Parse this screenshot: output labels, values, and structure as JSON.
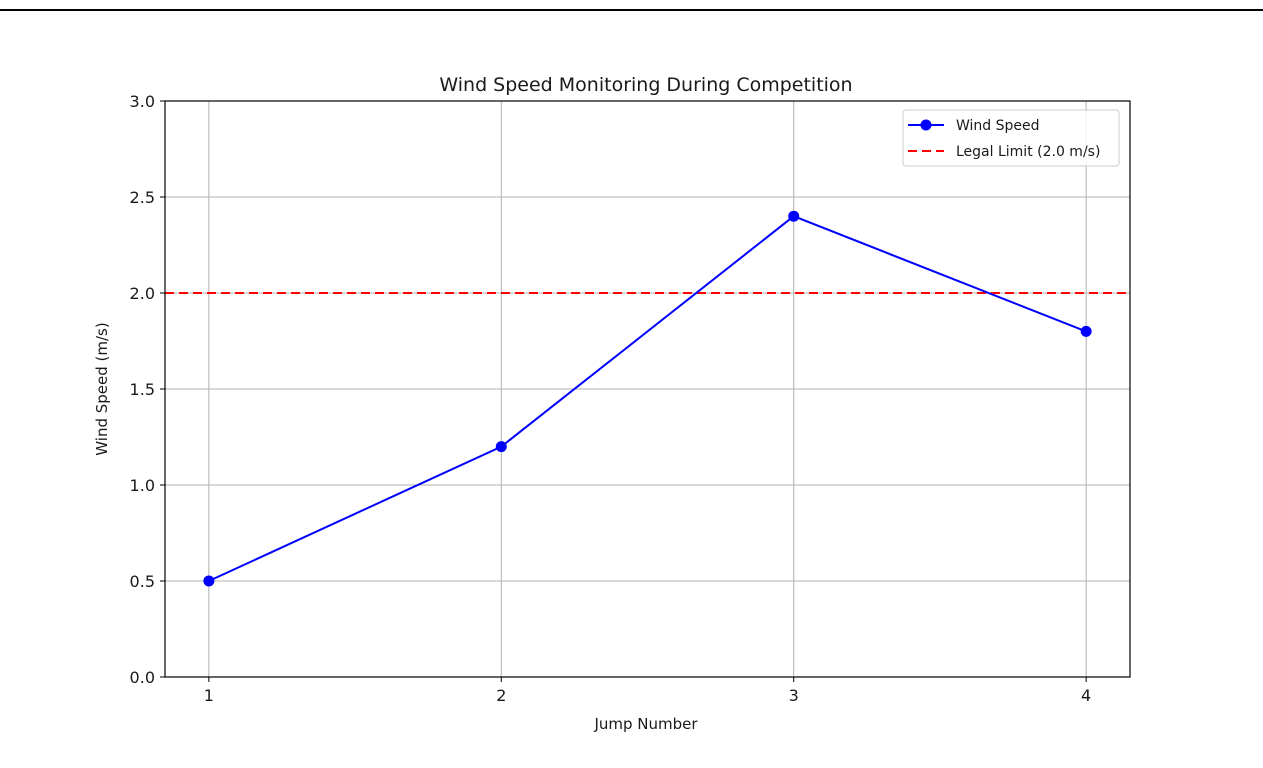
{
  "colors": {
    "series": "#0000ff",
    "limit": "#ff0000",
    "grid": "#b0b0b0",
    "axis": "#000000"
  },
  "chart_data": {
    "type": "line",
    "title": "Wind Speed Monitoring During Competition",
    "xlabel": "Jump Number",
    "ylabel": "Wind Speed (m/s)",
    "x": [
      1,
      2,
      3,
      4
    ],
    "xticks": [
      "1",
      "2",
      "3",
      "4"
    ],
    "yticks": [
      "0.0",
      "0.5",
      "1.0",
      "1.5",
      "2.0",
      "2.5",
      "3.0"
    ],
    "xlim": [
      0.85,
      4.15
    ],
    "ylim": [
      0,
      3.0
    ],
    "grid": true,
    "legend_position": "top-right",
    "series": [
      {
        "name": "Wind Speed",
        "values": [
          0.5,
          1.2,
          2.4,
          1.8
        ],
        "color": "#0000ff",
        "style": "solid",
        "marker": "circle"
      }
    ],
    "reference_lines": [
      {
        "name": "Legal Limit (2.0 m/s)",
        "y": 2.0,
        "color": "#ff0000",
        "style": "dashed"
      }
    ]
  }
}
